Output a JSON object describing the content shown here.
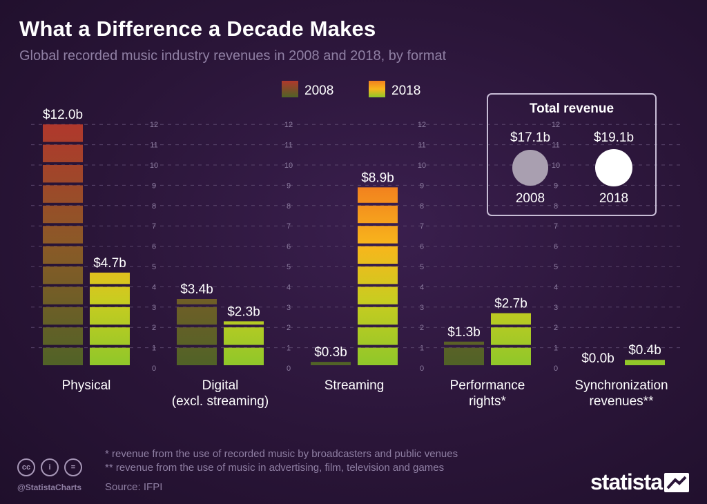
{
  "title": "What a Difference a Decade Makes",
  "subtitle": "Global recorded music industry revenues in 2008 and 2018, by format",
  "legend": {
    "y2008": "2008",
    "y2018": "2018"
  },
  "chart_data": {
    "type": "bar",
    "title": "What a Difference a Decade Makes",
    "ylim": [
      0,
      12
    ],
    "yticks": [
      "0",
      "1",
      "2",
      "3",
      "4",
      "5",
      "6",
      "7",
      "8",
      "9",
      "10",
      "11",
      "12"
    ],
    "categories": [
      "Physical",
      "Digital (excl. streaming)",
      "Streaming",
      "Performance rights*",
      "Synchronization revenues**"
    ],
    "category_lines": [
      [
        "Physical"
      ],
      [
        "Digital",
        "(excl. streaming)"
      ],
      [
        "Streaming"
      ],
      [
        "Performance",
        "rights*"
      ],
      [
        "Synchronization",
        "revenues**"
      ]
    ],
    "series": [
      {
        "name": "2008",
        "values": [
          12.0,
          3.4,
          0.3,
          1.3,
          0.0
        ],
        "labels": [
          "$12.0b",
          "$3.4b",
          "$0.3b",
          "$1.3b",
          "$0.0b"
        ]
      },
      {
        "name": "2018",
        "values": [
          4.7,
          2.3,
          8.9,
          2.7,
          0.4
        ],
        "labels": [
          "$4.7b",
          "$2.3b",
          "$8.9b",
          "$2.7b",
          "$0.4b"
        ]
      }
    ]
  },
  "total_revenue": {
    "title": "Total revenue",
    "items": [
      {
        "year": "2008",
        "value": "$17.1b",
        "amount": 17.1
      },
      {
        "year": "2018",
        "value": "$19.1b",
        "amount": 19.1
      }
    ]
  },
  "footnotes": [
    "*   revenue from the use of recorded music by broadcasters and public venues",
    "** revenue from the use of music in advertising, film, television and games"
  ],
  "source": "Source: IFPI",
  "handle": "@StatistaCharts",
  "brand": "statista",
  "colors": {
    "bar2008_top": "#b0382c",
    "bar2008_bottom": "#4f6327",
    "bar2018_top": "#f2801e",
    "bar2018_mid": "#f8b61c",
    "bar2018_bottom": "#8dc72a",
    "circle2008": "#a99fb0",
    "circle2018": "#ffffff"
  }
}
